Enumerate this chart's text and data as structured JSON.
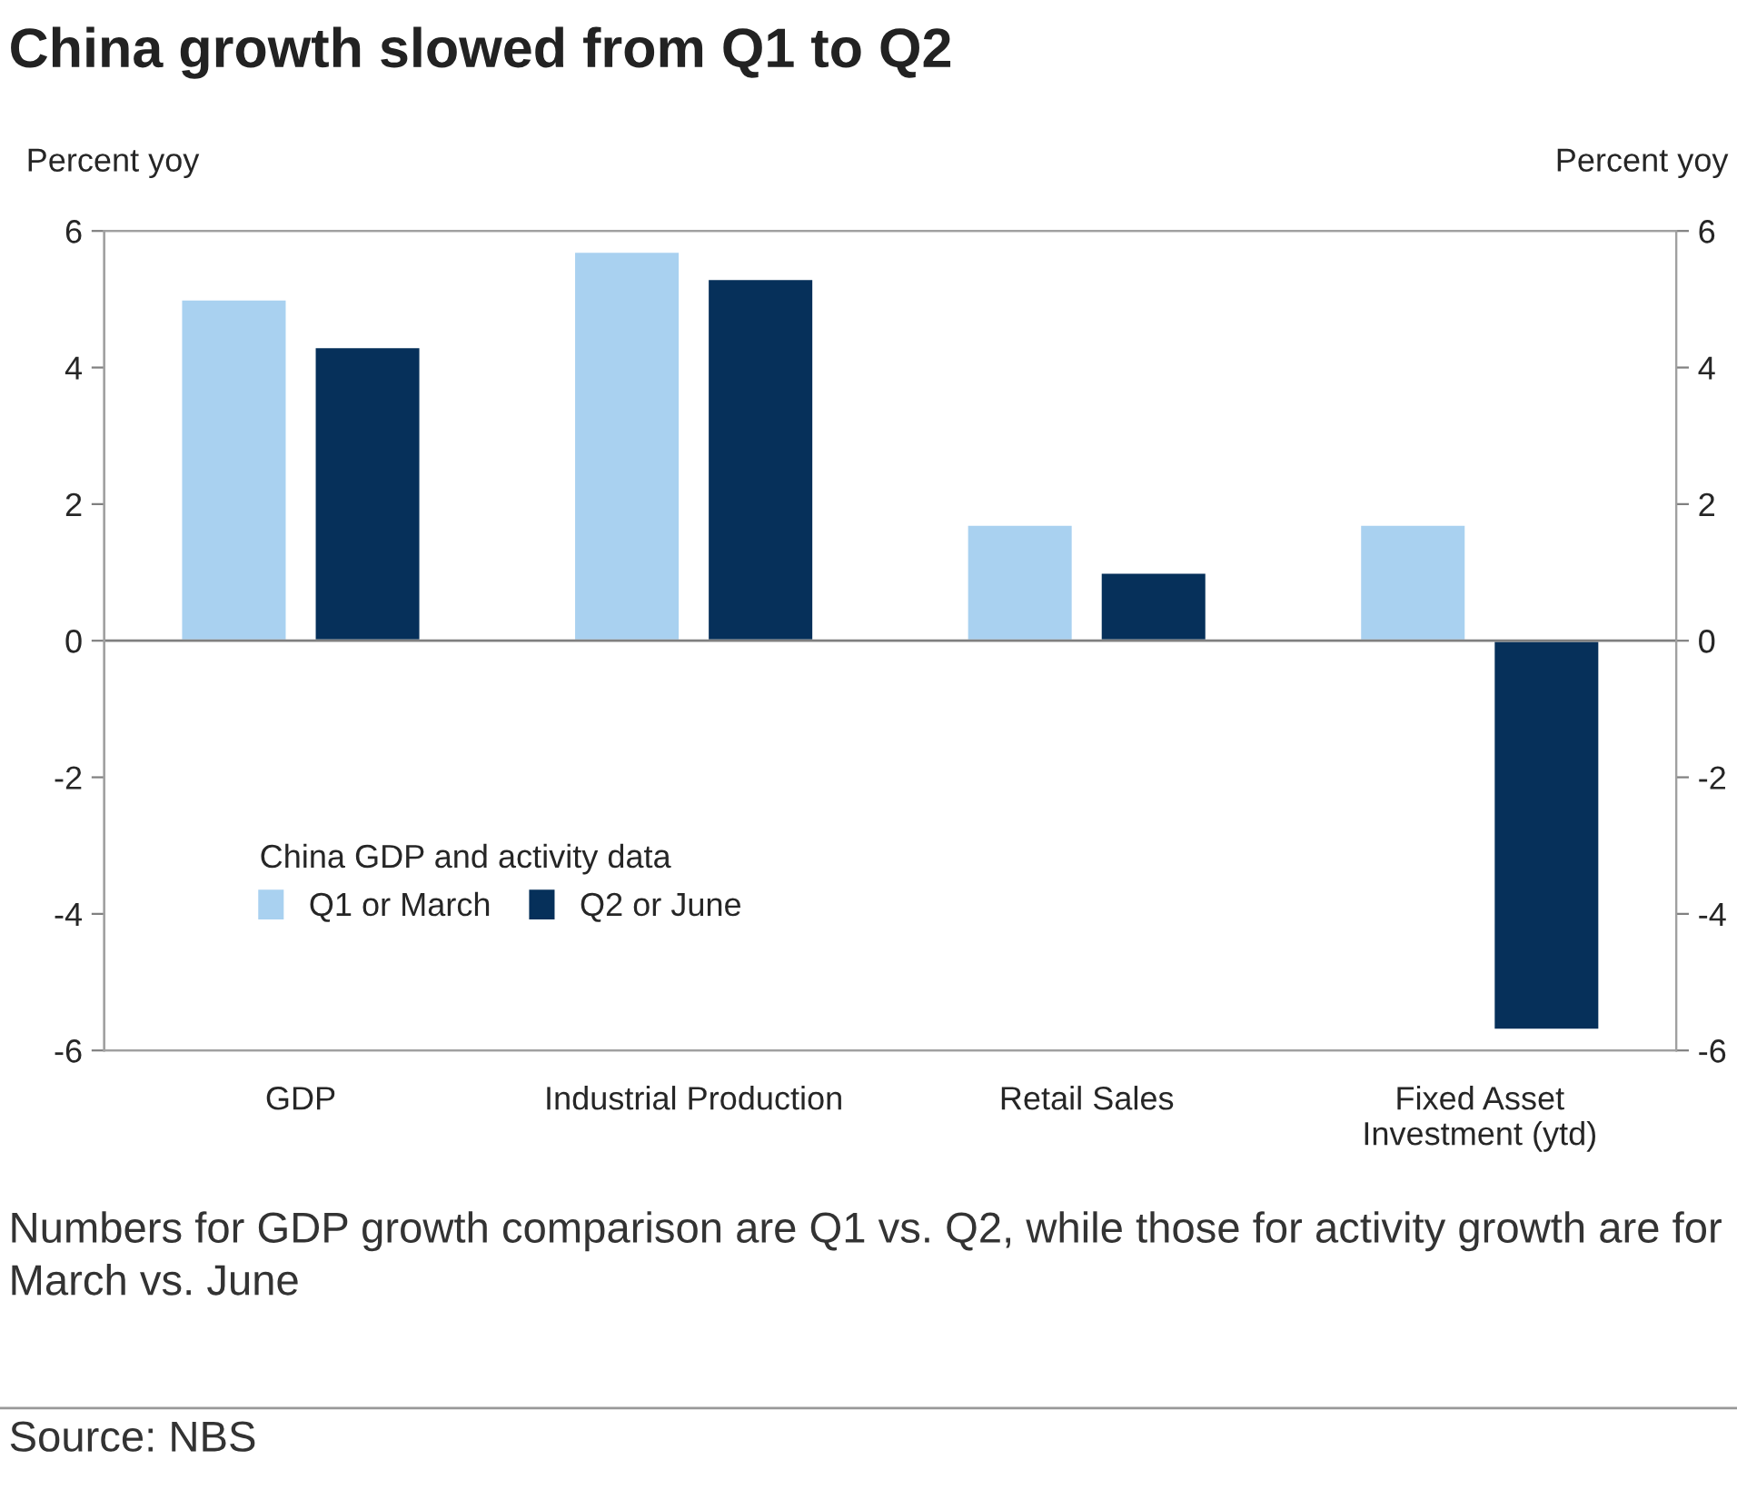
{
  "chart_data": {
    "type": "bar",
    "title": "China growth slowed from Q1 to Q2",
    "ylabel": "Percent yoy",
    "y2label": "Percent yoy",
    "categories": [
      "GDP",
      "Industrial Production",
      "Retail Sales",
      "Fixed Asset\nInvestment (ytd)"
    ],
    "series": [
      {
        "name": "Q1 or March",
        "color": "#a9d1f0",
        "values": [
          5.0,
          5.7,
          1.7,
          1.7
        ]
      },
      {
        "name": "Q2 or June",
        "color": "#06305a",
        "values": [
          4.3,
          5.3,
          1.0,
          -5.7
        ]
      }
    ],
    "ylim": [
      -6,
      6
    ],
    "yticks": [
      -6,
      -4,
      -2,
      0,
      2,
      4,
      6
    ],
    "y2lim": [
      -6,
      6
    ],
    "y2ticks": [
      -6,
      -4,
      -2,
      0,
      2,
      4,
      6
    ],
    "ref_lines": [
      {
        "axis": "y",
        "value": 0,
        "color": "#808080"
      }
    ],
    "legend_title": "China GDP and activity data",
    "legend": "bottom left",
    "grid": false,
    "annotations": [
      "Numbers for GDP growth comparison are Q1 vs. Q2, while those for activity growth are for March vs. June",
      "Source: NBS"
    ]
  }
}
